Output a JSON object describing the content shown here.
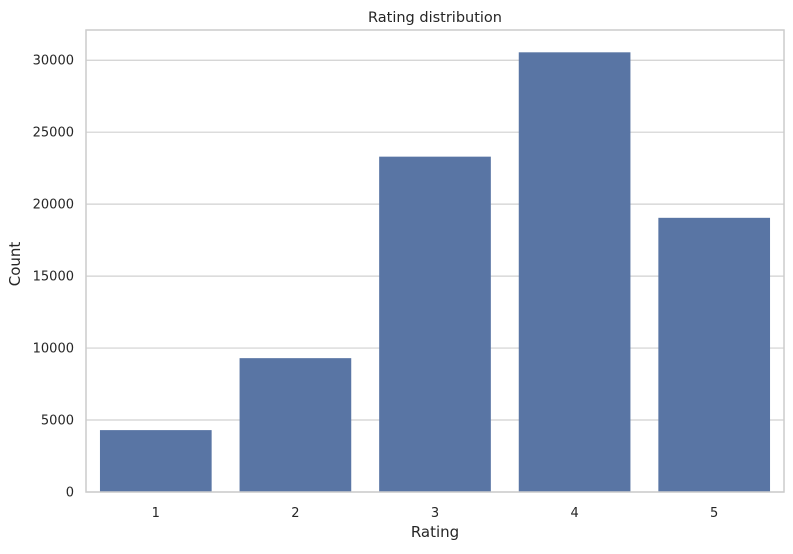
{
  "chart_data": {
    "type": "bar",
    "title": "Rating distribution",
    "xlabel": "Rating",
    "ylabel": "Count",
    "categories": [
      "1",
      "2",
      "3",
      "4",
      "5"
    ],
    "values": [
      4300,
      9300,
      23300,
      30550,
      19050
    ],
    "ylim": [
      0,
      32100
    ],
    "yticks": [
      0,
      5000,
      10000,
      15000,
      20000,
      25000,
      30000
    ],
    "grid": true,
    "grid_axis": "y",
    "legend": "none",
    "colors": {
      "bar": "#5975a4",
      "grid": "#d0d0d0",
      "spine": "#cccccc",
      "text": "#262626",
      "background": "#ffffff"
    }
  }
}
